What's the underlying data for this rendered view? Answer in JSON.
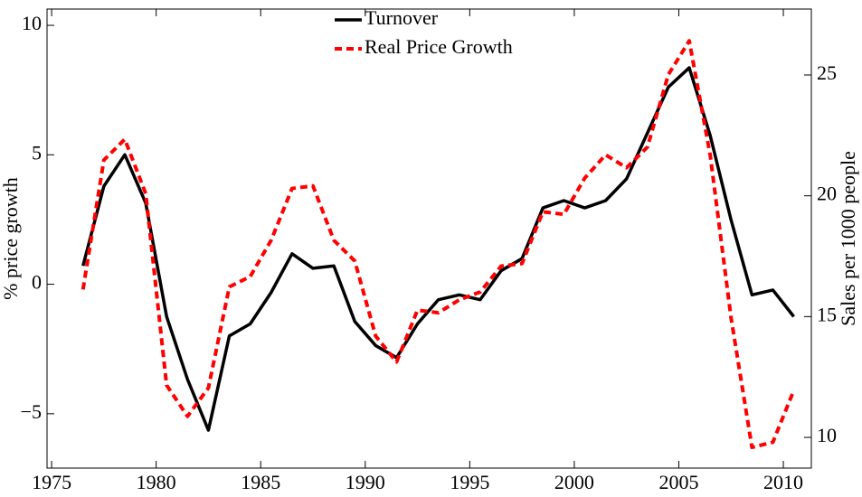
{
  "chart_data": {
    "type": "line",
    "ylabel": "% price growth",
    "y2label": "Sales per 1000 people",
    "x": [
      1976.5,
      1977.5,
      1978.5,
      1979.5,
      1980.5,
      1981.5,
      1982.5,
      1983.5,
      1984.5,
      1985.5,
      1986.5,
      1987.5,
      1988.5,
      1989.5,
      1990.5,
      1991.5,
      1992.5,
      1993.5,
      1994.5,
      1995.5,
      1996.5,
      1997.5,
      1998.5,
      1999.5,
      2000.5,
      2001.5,
      2002.5,
      2003.5,
      2004.5,
      2005.5,
      2006.5,
      2007.5,
      2008.5,
      2009.5,
      2010.5
    ],
    "series": [
      {
        "name": "Turnover",
        "color": "#000000",
        "style": "solid",
        "axis": "y2",
        "values": [
          17.1,
          20.4,
          21.7,
          19.7,
          15.0,
          12.4,
          10.3,
          14.2,
          14.7,
          16.0,
          17.6,
          17.0,
          17.1,
          14.8,
          13.8,
          13.3,
          14.7,
          15.7,
          15.9,
          15.7,
          16.9,
          17.4,
          19.5,
          19.8,
          19.5,
          19.8,
          20.7,
          22.6,
          24.5,
          25.3,
          22.5,
          19.0,
          15.9,
          16.1,
          15.0
        ]
      },
      {
        "name": "Real Price Growth",
        "color": "#ff0000",
        "style": "dashed",
        "axis": "y",
        "values": [
          -0.2,
          4.8,
          5.6,
          3.5,
          -3.9,
          -5.1,
          -4.0,
          -0.1,
          0.3,
          1.7,
          3.7,
          3.8,
          1.7,
          0.9,
          -2.0,
          -3.0,
          -1.0,
          -1.1,
          -0.6,
          -0.3,
          0.7,
          0.8,
          2.8,
          2.7,
          4.1,
          5.0,
          4.5,
          5.3,
          8.1,
          9.4,
          5.0,
          -1.3,
          -6.3,
          -6.1,
          -4.1
        ]
      }
    ],
    "xlim": [
      1974.78,
      2011.34
    ],
    "xticks": [
      1975,
      1980,
      1985,
      1990,
      1995,
      2000,
      2005,
      2010
    ],
    "ylim": [
      -7.1,
      10.63
    ],
    "yticks": [
      {
        "value": -5,
        "label": "−5"
      },
      0,
      5,
      10
    ],
    "y2lim": [
      8.73,
      27.73
    ],
    "y2ticks": [
      10,
      15,
      20,
      25
    ],
    "grid": false,
    "legend": "top"
  }
}
